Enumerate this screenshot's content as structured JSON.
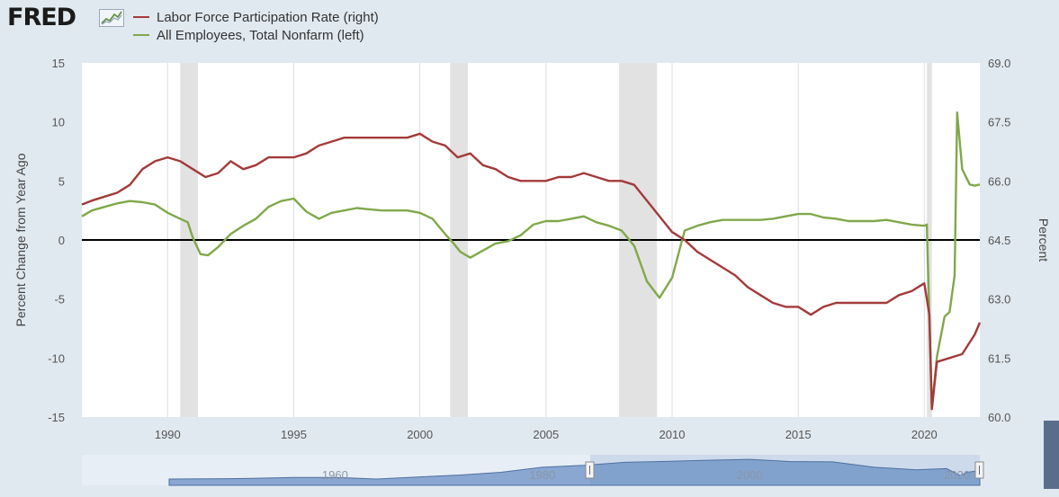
{
  "header": {
    "logo_text": "FRED",
    "logo_icon": "fred-chart-icon"
  },
  "colors": {
    "lfpr": "#a33a3a",
    "nonfarm": "#80a84a",
    "recession": "#e2e2e2",
    "zero_line": "#000000",
    "navigator_fill": "#6a8fc4",
    "navigator_line": "#4f6f9f"
  },
  "chart_data": {
    "type": "line",
    "xlabel": "",
    "ylabel_left": "Percent Change from Year Ago",
    "ylabel_right": "Percent",
    "xlim": [
      1986.6,
      2022.2
    ],
    "ylim_left": [
      -15,
      15
    ],
    "ylim_right": [
      60.0,
      69.0
    ],
    "x_ticks": [
      "1990",
      "1995",
      "2000",
      "2005",
      "2010",
      "2015",
      "2020"
    ],
    "y_ticks_left": [
      "15",
      "10",
      "5",
      "0",
      "-5",
      "-10",
      "-15"
    ],
    "y_ticks_right": [
      "69.0",
      "67.5",
      "66.0",
      "64.5",
      "63.0",
      "61.5",
      "60.0"
    ],
    "grid": "vertical-only",
    "legend_position": "top-left",
    "recessions": [
      [
        1990.5,
        1991.2
      ],
      [
        2001.2,
        2001.9
      ],
      [
        2007.9,
        2009.4
      ],
      [
        2020.1,
        2020.3
      ]
    ],
    "series": [
      {
        "name": "Labor Force Participation Rate (right)",
        "axis": "right",
        "x": [
          1986.6,
          1987.0,
          1987.5,
          1988.0,
          1988.5,
          1989.0,
          1989.5,
          1990.0,
          1990.5,
          1991.0,
          1991.5,
          1992.0,
          1992.5,
          1993.0,
          1993.5,
          1994.0,
          1994.5,
          1995.0,
          1995.5,
          1996.0,
          1996.5,
          1997.0,
          1997.5,
          1998.0,
          1998.5,
          1999.0,
          1999.5,
          2000.0,
          2000.5,
          2001.0,
          2001.5,
          2002.0,
          2002.5,
          2003.0,
          2003.5,
          2004.0,
          2004.5,
          2005.0,
          2005.5,
          2006.0,
          2006.5,
          2007.0,
          2007.5,
          2008.0,
          2008.5,
          2009.0,
          2009.5,
          2010.0,
          2010.5,
          2011.0,
          2011.5,
          2012.0,
          2012.5,
          2013.0,
          2013.5,
          2014.0,
          2014.5,
          2015.0,
          2015.5,
          2016.0,
          2016.5,
          2017.0,
          2017.5,
          2018.0,
          2018.5,
          2019.0,
          2019.5,
          2020.0,
          2020.2,
          2020.3,
          2020.5,
          2021.0,
          2021.5,
          2022.0,
          2022.2
        ],
        "values": [
          65.4,
          65.5,
          65.6,
          65.7,
          65.9,
          66.3,
          66.5,
          66.6,
          66.5,
          66.3,
          66.1,
          66.2,
          66.5,
          66.3,
          66.4,
          66.6,
          66.6,
          66.6,
          66.7,
          66.9,
          67.0,
          67.1,
          67.1,
          67.1,
          67.1,
          67.1,
          67.1,
          67.2,
          67.0,
          66.9,
          66.6,
          66.7,
          66.4,
          66.3,
          66.1,
          66.0,
          66.0,
          66.0,
          66.1,
          66.1,
          66.2,
          66.1,
          66.0,
          66.0,
          65.9,
          65.5,
          65.1,
          64.7,
          64.5,
          64.2,
          64.0,
          63.8,
          63.6,
          63.3,
          63.1,
          62.9,
          62.8,
          62.8,
          62.6,
          62.8,
          62.9,
          62.9,
          62.9,
          62.9,
          62.9,
          63.1,
          63.2,
          63.4,
          62.6,
          60.2,
          61.4,
          61.5,
          61.6,
          62.1,
          62.4
        ]
      },
      {
        "name": "All Employees, Total Nonfarm (left)",
        "axis": "left",
        "x": [
          1986.6,
          1987.0,
          1987.5,
          1988.0,
          1988.5,
          1989.0,
          1989.5,
          1990.0,
          1990.5,
          1990.8,
          1991.0,
          1991.3,
          1991.6,
          1992.0,
          1992.5,
          1993.0,
          1993.5,
          1994.0,
          1994.5,
          1995.0,
          1995.5,
          1996.0,
          1996.5,
          1997.0,
          1997.5,
          1998.0,
          1998.5,
          1999.0,
          1999.5,
          2000.0,
          2000.5,
          2001.0,
          2001.3,
          2001.6,
          2002.0,
          2002.5,
          2003.0,
          2003.5,
          2004.0,
          2004.5,
          2005.0,
          2005.5,
          2006.0,
          2006.5,
          2007.0,
          2007.5,
          2008.0,
          2008.5,
          2009.0,
          2009.5,
          2010.0,
          2010.5,
          2011.0,
          2011.5,
          2012.0,
          2012.5,
          2013.0,
          2013.5,
          2014.0,
          2014.5,
          2015.0,
          2015.5,
          2016.0,
          2016.5,
          2017.0,
          2017.5,
          2018.0,
          2018.5,
          2019.0,
          2019.5,
          2020.0,
          2020.1,
          2020.3,
          2020.5,
          2020.8,
          2021.0,
          2021.2,
          2021.3,
          2021.5,
          2021.8,
          2022.0,
          2022.2
        ],
        "values": [
          2.0,
          2.5,
          2.8,
          3.1,
          3.3,
          3.2,
          3.0,
          2.3,
          1.8,
          1.5,
          0.2,
          -1.2,
          -1.3,
          -0.6,
          0.5,
          1.2,
          1.8,
          2.8,
          3.3,
          3.5,
          2.4,
          1.8,
          2.3,
          2.5,
          2.7,
          2.6,
          2.5,
          2.5,
          2.5,
          2.3,
          1.8,
          0.5,
          -0.2,
          -1.0,
          -1.5,
          -0.9,
          -0.3,
          -0.1,
          0.4,
          1.3,
          1.6,
          1.6,
          1.8,
          2.0,
          1.5,
          1.2,
          0.8,
          -0.5,
          -3.5,
          -4.9,
          -3.2,
          0.8,
          1.2,
          1.5,
          1.7,
          1.7,
          1.7,
          1.7,
          1.8,
          2.0,
          2.2,
          2.2,
          1.9,
          1.8,
          1.6,
          1.6,
          1.6,
          1.7,
          1.5,
          1.3,
          1.2,
          1.3,
          -14.3,
          -9.9,
          -6.5,
          -6.1,
          -3.0,
          10.8,
          6.0,
          4.7,
          4.6,
          4.7
        ]
      }
    ]
  },
  "navigator": {
    "tick_labels": [
      "1960",
      "1980",
      "2000",
      "2020"
    ],
    "xlim": [
      1944,
      2022.2
    ],
    "selected_range": [
      1986.6,
      2022.2
    ],
    "x": [
      1944,
      1948,
      1952,
      1956,
      1960,
      1964,
      1968,
      1972,
      1976,
      1980,
      1984,
      1988,
      1992,
      1996,
      2000,
      2004,
      2008,
      2012,
      2016,
      2019,
      2020.3,
      2021,
      2022.2
    ],
    "values": [
      58.7,
      58.8,
      59.0,
      59.4,
      59.4,
      58.7,
      59.6,
      60.4,
      61.6,
      63.8,
      64.6,
      65.9,
      66.3,
      66.8,
      67.2,
      66.2,
      66.1,
      63.8,
      62.7,
      63.2,
      60.2,
      61.6,
      62.4
    ]
  }
}
